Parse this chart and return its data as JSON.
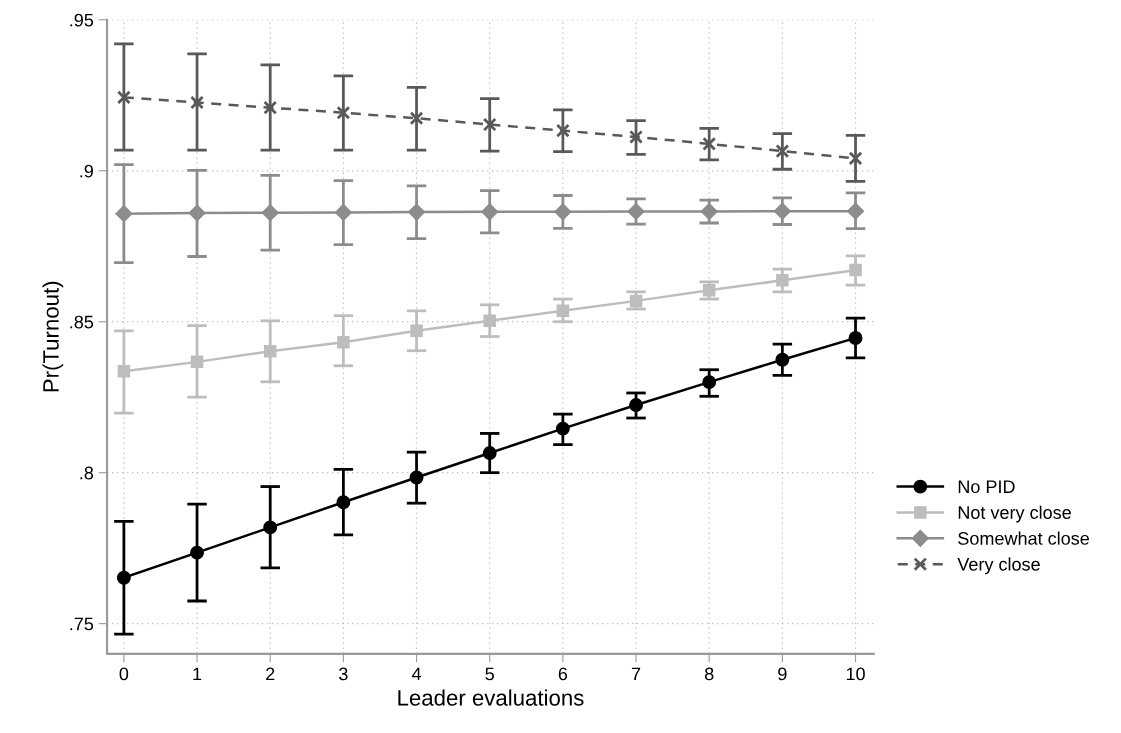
{
  "chart_data": {
    "type": "line",
    "xlabel": "Leader evaluations",
    "ylabel": "Pr(Turnout)",
    "x": [
      0,
      1,
      2,
      3,
      4,
      5,
      6,
      7,
      8,
      9,
      10
    ],
    "xlim": [
      -0.23,
      10.25
    ],
    "xticks": [
      0,
      1,
      2,
      3,
      4,
      5,
      6,
      7,
      8,
      9,
      10
    ],
    "ylim": [
      0.74,
      0.95
    ],
    "yticks": [
      {
        "value": 0.75,
        "label": ".75"
      },
      {
        "value": 0.8,
        "label": ".8"
      },
      {
        "value": 0.85,
        "label": ".85"
      },
      {
        "value": 0.9,
        "label": ".9"
      },
      {
        "value": 0.95,
        "label": ".95"
      }
    ],
    "grid": true,
    "legend": "right",
    "series": [
      {
        "name": "No PID",
        "color": "#000000",
        "marker": "circle",
        "line_style": "solid",
        "values": [
          0.7652,
          0.7735,
          0.7819,
          0.7902,
          0.7984,
          0.8065,
          0.8146,
          0.8224,
          0.83,
          0.8374,
          0.8446
        ],
        "errors": [
          [
            0.7465,
            0.7839
          ],
          [
            0.7575,
            0.7896
          ],
          [
            0.7685,
            0.7954
          ],
          [
            0.7794,
            0.8011
          ],
          [
            0.7899,
            0.8068
          ],
          [
            0.8,
            0.813
          ],
          [
            0.8093,
            0.8194
          ],
          [
            0.8181,
            0.8264
          ],
          [
            0.8253,
            0.8341
          ],
          [
            0.8322,
            0.8426
          ],
          [
            0.838,
            0.8512
          ]
        ]
      },
      {
        "name": "Not very close",
        "color": "#bdbdbd",
        "marker": "square",
        "line_style": "solid",
        "values": [
          0.8336,
          0.8367,
          0.8402,
          0.8432,
          0.847,
          0.8503,
          0.8536,
          0.8569,
          0.8604,
          0.8637,
          0.8671
        ],
        "errors": [
          [
            0.8197,
            0.847
          ],
          [
            0.825,
            0.8487
          ],
          [
            0.8301,
            0.8503
          ],
          [
            0.8354,
            0.852
          ],
          [
            0.8404,
            0.8536
          ],
          [
            0.8451,
            0.8556
          ],
          [
            0.85,
            0.8575
          ],
          [
            0.8542,
            0.8599
          ],
          [
            0.8575,
            0.8632
          ],
          [
            0.8599,
            0.8674
          ],
          [
            0.8621,
            0.8718
          ]
        ]
      },
      {
        "name": "Somewhat close",
        "color": "#8c8c8c",
        "marker": "diamond",
        "line_style": "solid",
        "values": [
          0.8858,
          0.886,
          0.8861,
          0.8862,
          0.8863,
          0.8864,
          0.8864,
          0.8865,
          0.8865,
          0.8866,
          0.8866
        ],
        "errors": [
          [
            0.8696,
            0.902
          ],
          [
            0.8716,
            0.9001
          ],
          [
            0.8737,
            0.8985
          ],
          [
            0.8755,
            0.8967
          ],
          [
            0.8775,
            0.895
          ],
          [
            0.8794,
            0.8934
          ],
          [
            0.8809,
            0.8918
          ],
          [
            0.8823,
            0.8907
          ],
          [
            0.8827,
            0.8903
          ],
          [
            0.8822,
            0.891
          ],
          [
            0.8808,
            0.8927
          ]
        ]
      },
      {
        "name": "Very close",
        "color": "#595959",
        "marker": "cross",
        "line_style": "dashed",
        "values": [
          0.9243,
          0.9226,
          0.9209,
          0.9192,
          0.9174,
          0.9153,
          0.9133,
          0.9112,
          0.9089,
          0.9065,
          0.9041
        ],
        "errors": [
          [
            0.9068,
            0.942
          ],
          [
            0.9068,
            0.9387
          ],
          [
            0.9068,
            0.9351
          ],
          [
            0.9068,
            0.9314
          ],
          [
            0.9068,
            0.9276
          ],
          [
            0.9065,
            0.9239
          ],
          [
            0.9063,
            0.9202
          ],
          [
            0.9054,
            0.9166
          ],
          [
            0.9036,
            0.914
          ],
          [
            0.9005,
            0.9123
          ],
          [
            0.8965,
            0.9117
          ]
        ]
      }
    ]
  }
}
